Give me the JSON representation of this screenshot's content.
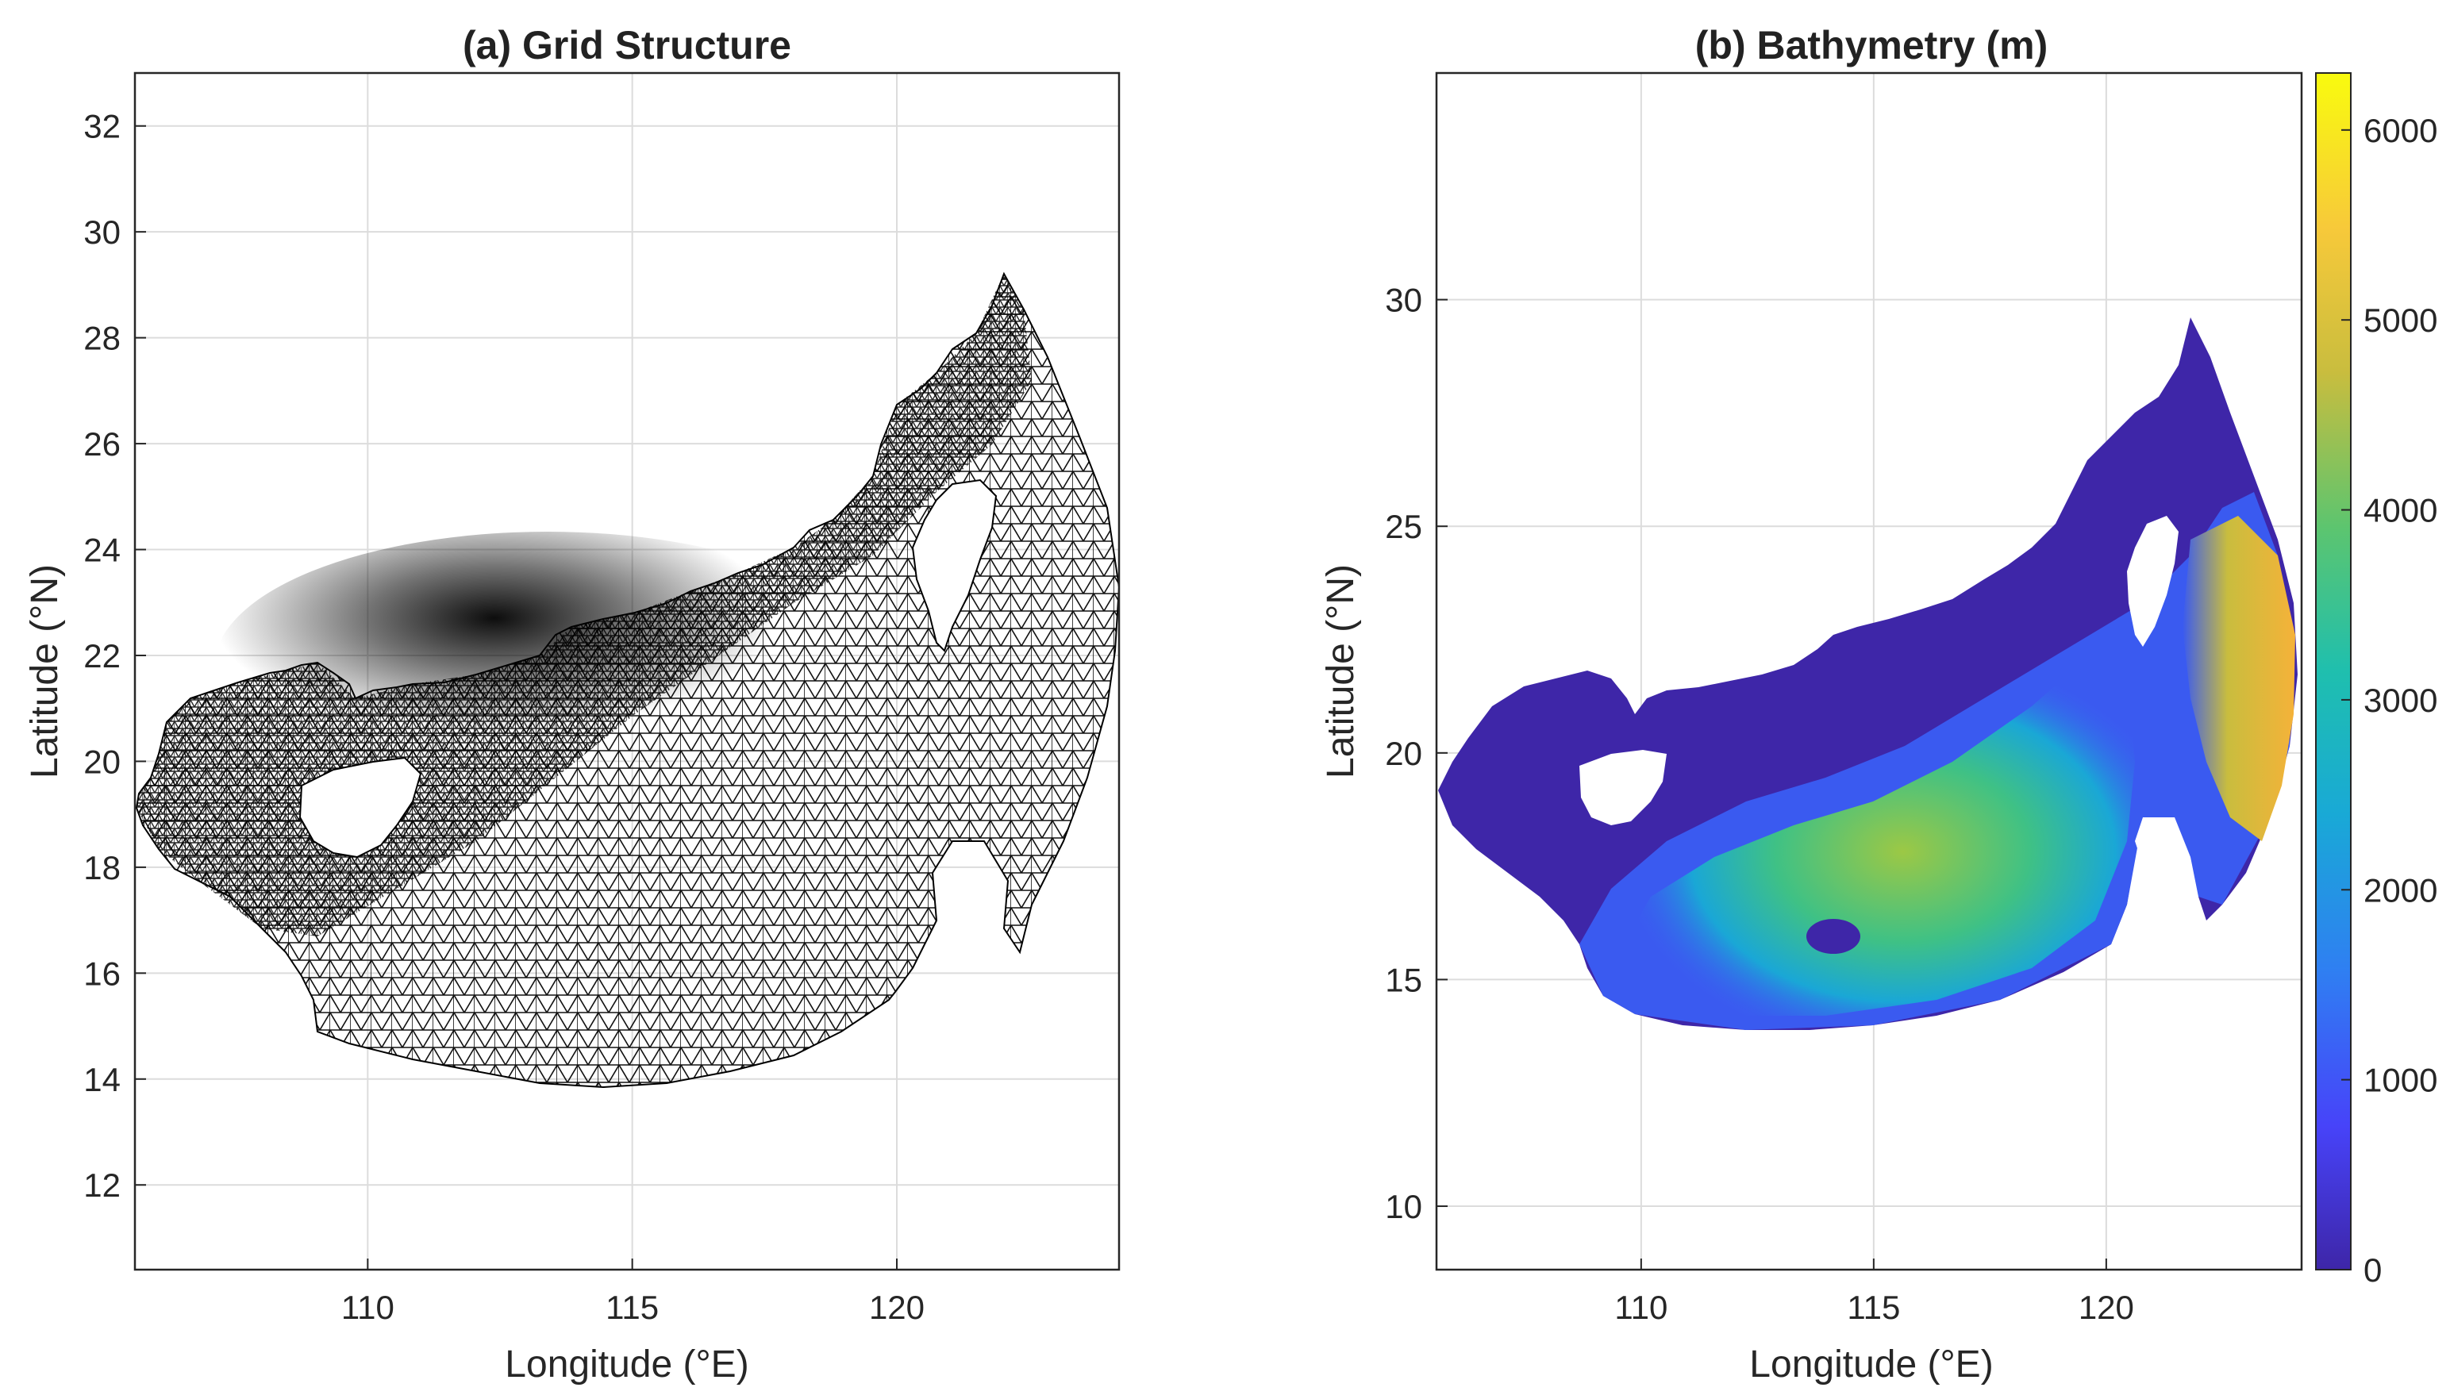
{
  "panel_a": {
    "title": "(a) Grid Structure",
    "xlabel": "Longitude (°E)",
    "ylabel": "Latitude (°N)",
    "xlim": [
      105.6,
      124.2
    ],
    "ylim": [
      10.4,
      33.0
    ],
    "xticks": [
      110,
      115,
      120
    ],
    "yticks": [
      12,
      14,
      16,
      18,
      20,
      22,
      24,
      26,
      28,
      30,
      32
    ],
    "grid": true,
    "layer": "unstructured triangular mesh, black lines on white"
  },
  "panel_b": {
    "title": "(b) Bathymetry (m)",
    "xlabel": "Longitude (°E)",
    "ylabel": "Latitude (°N)",
    "xlim": [
      105.6,
      124.2
    ],
    "ylim": [
      8.6,
      35.0
    ],
    "xticks": [
      110,
      115,
      120
    ],
    "yticks": [
      10,
      15,
      20,
      25,
      30
    ],
    "grid": true,
    "colorbar": {
      "min": 0,
      "max": 6300,
      "ticks": [
        0,
        1000,
        2000,
        3000,
        4000,
        5000,
        6000
      ],
      "colormap": "parula",
      "colors": [
        "#3e26a8",
        "#4743f9",
        "#2f8ef9",
        "#19b3d1",
        "#2ec796",
        "#8ec453",
        "#f5b239",
        "#f9d92a",
        "#f9fb0e"
      ]
    }
  }
}
